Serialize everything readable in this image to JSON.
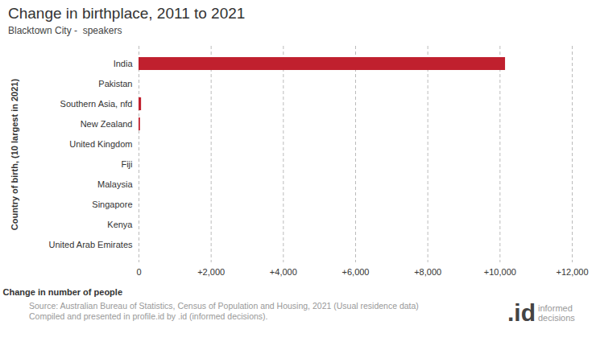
{
  "chart_data": {
    "type": "bar",
    "orientation": "horizontal",
    "title": "Change in birthplace, 2011 to 2021",
    "subtitle": "Blacktown City -  speakers",
    "x_label": "Change in number of people",
    "y_label": "Country of birth, (10 largest in 2021)",
    "categories": [
      "India",
      "Pakistan",
      "Southern Asia, nfd",
      "New Zealand",
      "United Kingdom",
      "Fiji",
      "Malaysia",
      "Singapore",
      "Kenya",
      "United Arab Emirates"
    ],
    "values": [
      10150,
      0,
      70,
      40,
      0,
      0,
      0,
      0,
      0,
      0
    ],
    "color": "#c0202e",
    "xlim": [
      0,
      12000
    ],
    "xticks": [
      0,
      {
        "value": 2000,
        "label": "+2,000"
      },
      {
        "value": 4000,
        "label": "+4,000"
      },
      {
        "value": 6000,
        "label": "+6,000"
      },
      {
        "value": 8000,
        "label": "+8,000"
      },
      {
        "value": 10000,
        "label": "+10,000"
      },
      {
        "value": 12000,
        "label": "+12,000"
      }
    ],
    "grid": true,
    "source": [
      "Source: Australian Bureau of Statistics, Census of Population and Housing, 2021 (Usual residence data)",
      "Compiled and presented in profile.id by .id (informed decisions)."
    ],
    "logo": {
      "mark": ".id",
      "text": "informed decisions"
    }
  }
}
